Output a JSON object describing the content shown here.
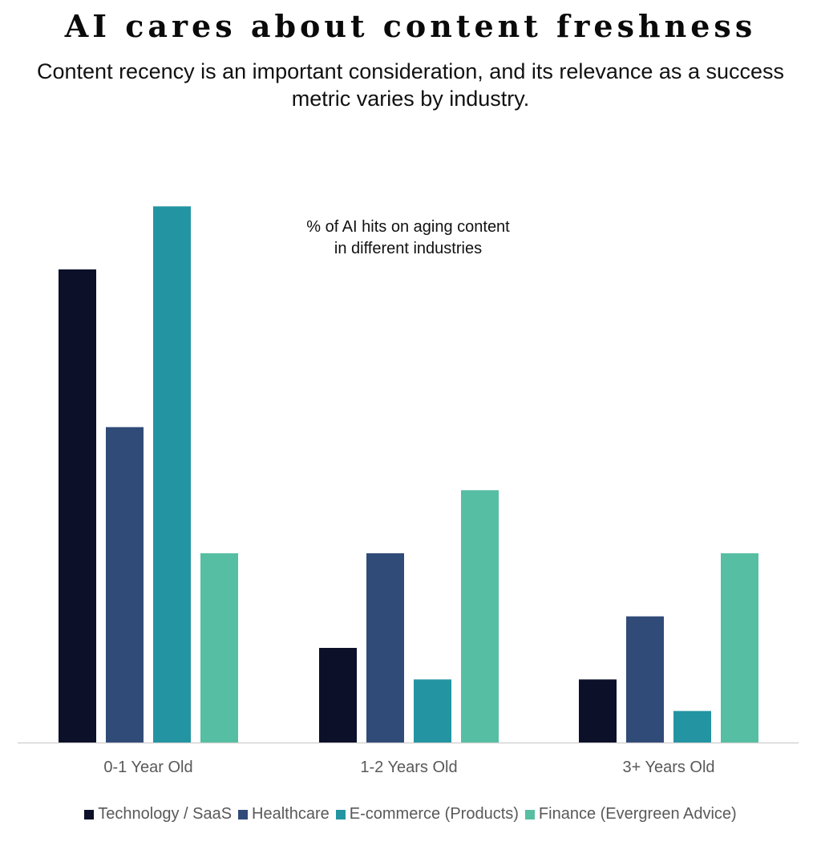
{
  "header": {
    "title": "AI cares about content freshness",
    "subtitle_line1": "Content recency is an important consideration, and its relevance as a success",
    "subtitle_line2": "metric varies by industry."
  },
  "chart_data": {
    "type": "bar",
    "title": "AI cares about content freshness",
    "annotation": [
      "% of AI hits on aging content",
      "in different industries"
    ],
    "categories": [
      "0-1 Year Old",
      "1-2 Years Old",
      "3+ Years Old"
    ],
    "series": [
      {
        "name": "Technology / SaaS",
        "color": "#0c1029",
        "values": [
          75,
          15,
          10
        ]
      },
      {
        "name": "Healthcare",
        "color": "#304b77",
        "values": [
          50,
          30,
          20
        ]
      },
      {
        "name": "E-commerce (Products)",
        "color": "#2395a2",
        "values": [
          85,
          10,
          5
        ]
      },
      {
        "name": "Finance (Evergreen Advice)",
        "color": "#56bea3",
        "values": [
          30,
          40,
          30
        ]
      }
    ],
    "ylim": [
      0,
      90
    ],
    "grid": false,
    "y_axis_visible": false,
    "legend_position": "bottom"
  }
}
